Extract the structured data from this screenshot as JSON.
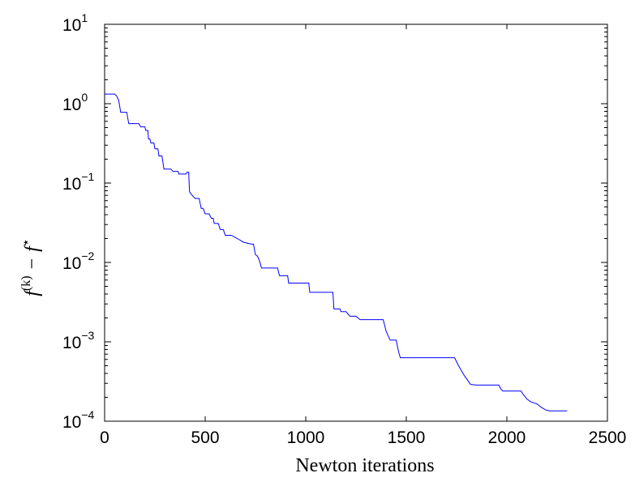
{
  "chart_data": {
    "type": "line",
    "title": "",
    "xlabel": "Newton iterations",
    "ylabel": {
      "f": "f",
      "k_superscript": "(k)",
      "minus": "−",
      "f_star": "f",
      "star_superscript": "⋆"
    },
    "xlim": [
      0,
      2500
    ],
    "ylim": [
      0.0001,
      10
    ],
    "yscale": "log",
    "grid": false,
    "x_ticks": [
      {
        "value": 0,
        "label": "0"
      },
      {
        "value": 500,
        "label": "500"
      },
      {
        "value": 1000,
        "label": "1000"
      },
      {
        "value": 1500,
        "label": "1500"
      },
      {
        "value": 2000,
        "label": "2000"
      },
      {
        "value": 2500,
        "label": "2500"
      }
    ],
    "y_ticks": [
      {
        "value": 10,
        "base": "10",
        "exp": "1"
      },
      {
        "value": 1,
        "base": "10",
        "exp": "0"
      },
      {
        "value": 0.1,
        "base": "10",
        "exp": "−1"
      },
      {
        "value": 0.01,
        "base": "10",
        "exp": "−2"
      },
      {
        "value": 0.001,
        "base": "10",
        "exp": "−3"
      },
      {
        "value": 0.0001,
        "base": "10",
        "exp": "−4"
      }
    ],
    "series": [
      {
        "color": "#0000ff",
        "points": [
          [
            0,
            1.32
          ],
          [
            50,
            1.32
          ],
          [
            60,
            1.25
          ],
          [
            70,
            1.1
          ],
          [
            80,
            0.78
          ],
          [
            110,
            0.78
          ],
          [
            120,
            0.56
          ],
          [
            170,
            0.56
          ],
          [
            180,
            0.51
          ],
          [
            200,
            0.51
          ],
          [
            205,
            0.46
          ],
          [
            215,
            0.46
          ],
          [
            218,
            0.36
          ],
          [
            225,
            0.36
          ],
          [
            230,
            0.32
          ],
          [
            245,
            0.32
          ],
          [
            250,
            0.27
          ],
          [
            265,
            0.27
          ],
          [
            270,
            0.22
          ],
          [
            285,
            0.22
          ],
          [
            295,
            0.15
          ],
          [
            320,
            0.15
          ],
          [
            330,
            0.15
          ],
          [
            340,
            0.14
          ],
          [
            355,
            0.14
          ],
          [
            365,
            0.14
          ],
          [
            370,
            0.13
          ],
          [
            405,
            0.13
          ],
          [
            410,
            0.137
          ],
          [
            418,
            0.137
          ],
          [
            422,
            0.078
          ],
          [
            428,
            0.074
          ],
          [
            440,
            0.068
          ],
          [
            450,
            0.064
          ],
          [
            470,
            0.064
          ],
          [
            480,
            0.048
          ],
          [
            490,
            0.048
          ],
          [
            500,
            0.041
          ],
          [
            520,
            0.041
          ],
          [
            530,
            0.036
          ],
          [
            540,
            0.036
          ],
          [
            545,
            0.031
          ],
          [
            565,
            0.031
          ],
          [
            575,
            0.026
          ],
          [
            590,
            0.026
          ],
          [
            600,
            0.022
          ],
          [
            630,
            0.022
          ],
          [
            660,
            0.02
          ],
          [
            690,
            0.018
          ],
          [
            730,
            0.017
          ],
          [
            740,
            0.017
          ],
          [
            750,
            0.0125
          ],
          [
            760,
            0.012
          ],
          [
            770,
            0.0105
          ],
          [
            780,
            0.0085
          ],
          [
            860,
            0.0085
          ],
          [
            865,
            0.0075
          ],
          [
            870,
            0.0068
          ],
          [
            910,
            0.0068
          ],
          [
            915,
            0.0055
          ],
          [
            1015,
            0.0055
          ],
          [
            1020,
            0.0042
          ],
          [
            1135,
            0.0042
          ],
          [
            1140,
            0.0026
          ],
          [
            1170,
            0.0026
          ],
          [
            1175,
            0.0024
          ],
          [
            1200,
            0.0024
          ],
          [
            1220,
            0.0021
          ],
          [
            1250,
            0.0021
          ],
          [
            1270,
            0.0019
          ],
          [
            1385,
            0.0019
          ],
          [
            1390,
            0.0017
          ],
          [
            1400,
            0.00135
          ],
          [
            1420,
            0.00105
          ],
          [
            1450,
            0.00105
          ],
          [
            1460,
            0.00078
          ],
          [
            1470,
            0.00063
          ],
          [
            1740,
            0.00063
          ],
          [
            1760,
            0.0005
          ],
          [
            1790,
            0.00037
          ],
          [
            1820,
            0.00029
          ],
          [
            1850,
            0.000285
          ],
          [
            1960,
            0.000285
          ],
          [
            1970,
            0.000255
          ],
          [
            1980,
            0.00024
          ],
          [
            2070,
            0.00024
          ],
          [
            2080,
            0.00022
          ],
          [
            2100,
            0.00019
          ],
          [
            2120,
            0.000175
          ],
          [
            2150,
            0.000165
          ],
          [
            2170,
            0.00015
          ],
          [
            2190,
            0.00014
          ],
          [
            2210,
            0.000135
          ],
          [
            2300,
            0.000135
          ]
        ]
      }
    ]
  }
}
